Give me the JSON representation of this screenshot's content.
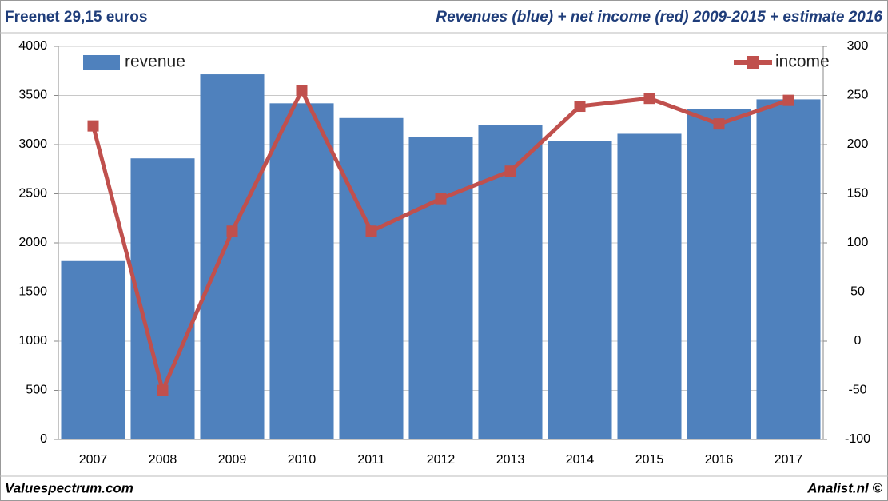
{
  "chart_data": {
    "type": "bar",
    "title": "Freenet 29,15 euros",
    "subtitle": "Revenues (blue) + net income (red) 2009-2015 + estimate 2016",
    "footer_left": "Valuespectrum.com",
    "footer_right": "Analist.nl ©",
    "categories": [
      "2007",
      "2008",
      "2009",
      "2010",
      "2011",
      "2012",
      "2013",
      "2014",
      "2015",
      "2016",
      "2017"
    ],
    "series": [
      {
        "name": "revenue",
        "type": "bar",
        "color": "#4f81bd",
        "legend_position": "top-left",
        "values": [
          1815,
          2860,
          3715,
          3420,
          3270,
          3080,
          3195,
          3040,
          3110,
          3365,
          3460
        ]
      },
      {
        "name": "income",
        "type": "line",
        "axis": "y2",
        "color": "#c0504d",
        "legend_position": "top-right",
        "values": [
          219,
          -50,
          112,
          255,
          112,
          145,
          173,
          239,
          247,
          221,
          245
        ]
      }
    ],
    "ylim": [
      0,
      4000
    ],
    "yticks": [
      0,
      500,
      1000,
      1500,
      2000,
      2500,
      3000,
      3500,
      4000
    ],
    "y2lim": [
      -100,
      300
    ],
    "y2ticks": [
      -100,
      -50,
      0,
      50,
      100,
      150,
      200,
      250,
      300
    ],
    "grid": true
  }
}
